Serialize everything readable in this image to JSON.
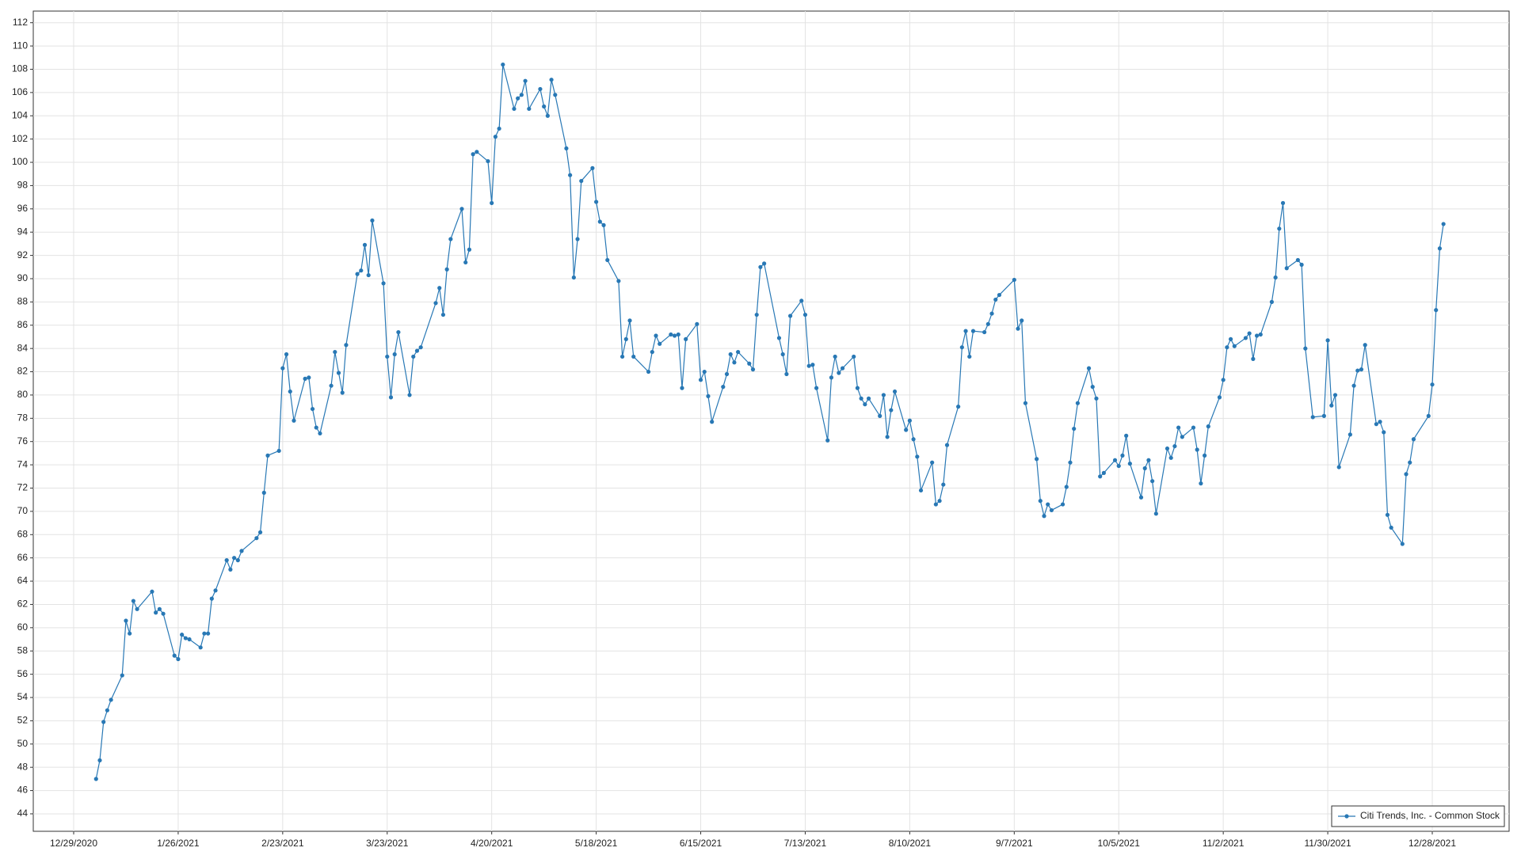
{
  "chart_data": {
    "type": "line",
    "x": [
      "1/4/2021",
      "1/5/2021",
      "1/6/2021",
      "1/7/2021",
      "1/8/2021",
      "1/11/2021",
      "1/12/2021",
      "1/13/2021",
      "1/14/2021",
      "1/15/2021",
      "1/19/2021",
      "1/20/2021",
      "1/21/2021",
      "1/22/2021",
      "1/25/2021",
      "1/26/2021",
      "1/27/2021",
      "1/28/2021",
      "1/29/2021",
      "2/1/2021",
      "2/2/2021",
      "2/3/2021",
      "2/4/2021",
      "2/5/2021",
      "2/8/2021",
      "2/9/2021",
      "2/10/2021",
      "2/11/2021",
      "2/12/2021",
      "2/16/2021",
      "2/17/2021",
      "2/18/2021",
      "2/19/2021",
      "2/22/2021",
      "2/23/2021",
      "2/24/2021",
      "2/25/2021",
      "2/26/2021",
      "3/1/2021",
      "3/2/2021",
      "3/3/2021",
      "3/4/2021",
      "3/5/2021",
      "3/8/2021",
      "3/9/2021",
      "3/10/2021",
      "3/11/2021",
      "3/12/2021",
      "3/15/2021",
      "3/16/2021",
      "3/17/2021",
      "3/18/2021",
      "3/19/2021",
      "3/22/2021",
      "3/23/2021",
      "3/24/2021",
      "3/25/2021",
      "3/26/2021",
      "3/29/2021",
      "3/30/2021",
      "3/31/2021",
      "4/1/2021",
      "4/5/2021",
      "4/6/2021",
      "4/7/2021",
      "4/8/2021",
      "4/9/2021",
      "4/12/2021",
      "4/13/2021",
      "4/14/2021",
      "4/15/2021",
      "4/16/2021",
      "4/19/2021",
      "4/20/2021",
      "4/21/2021",
      "4/22/2021",
      "4/23/2021",
      "4/26/2021",
      "4/27/2021",
      "4/28/2021",
      "4/29/2021",
      "4/30/2021",
      "5/3/2021",
      "5/4/2021",
      "5/5/2021",
      "5/6/2021",
      "5/7/2021",
      "5/10/2021",
      "5/11/2021",
      "5/12/2021",
      "5/13/2021",
      "5/14/2021",
      "5/17/2021",
      "5/18/2021",
      "5/19/2021",
      "5/20/2021",
      "5/21/2021",
      "5/24/2021",
      "5/25/2021",
      "5/26/2021",
      "5/27/2021",
      "5/28/2021",
      "6/1/2021",
      "6/2/2021",
      "6/3/2021",
      "6/4/2021",
      "6/7/2021",
      "6/8/2021",
      "6/9/2021",
      "6/10/2021",
      "6/11/2021",
      "6/14/2021",
      "6/15/2021",
      "6/16/2021",
      "6/17/2021",
      "6/18/2021",
      "6/21/2021",
      "6/22/2021",
      "6/23/2021",
      "6/24/2021",
      "6/25/2021",
      "6/28/2021",
      "6/29/2021",
      "6/30/2021",
      "7/1/2021",
      "7/2/2021",
      "7/6/2021",
      "7/7/2021",
      "7/8/2021",
      "7/9/2021",
      "7/12/2021",
      "7/13/2021",
      "7/14/2021",
      "7/15/2021",
      "7/16/2021",
      "7/19/2021",
      "7/20/2021",
      "7/21/2021",
      "7/22/2021",
      "7/23/2021",
      "7/26/2021",
      "7/27/2021",
      "7/28/2021",
      "7/29/2021",
      "7/30/2021",
      "8/2/2021",
      "8/3/2021",
      "8/4/2021",
      "8/5/2021",
      "8/6/2021",
      "8/9/2021",
      "8/10/2021",
      "8/11/2021",
      "8/12/2021",
      "8/13/2021",
      "8/16/2021",
      "8/17/2021",
      "8/18/2021",
      "8/19/2021",
      "8/20/2021",
      "8/23/2021",
      "8/24/2021",
      "8/25/2021",
      "8/26/2021",
      "8/27/2021",
      "8/30/2021",
      "8/31/2021",
      "9/1/2021",
      "9/2/2021",
      "9/3/2021",
      "9/7/2021",
      "9/8/2021",
      "9/9/2021",
      "9/10/2021",
      "9/13/2021",
      "9/14/2021",
      "9/15/2021",
      "9/16/2021",
      "9/17/2021",
      "9/20/2021",
      "9/21/2021",
      "9/22/2021",
      "9/23/2021",
      "9/24/2021",
      "9/27/2021",
      "9/28/2021",
      "9/29/2021",
      "9/30/2021",
      "10/1/2021",
      "10/4/2021",
      "10/5/2021",
      "10/6/2021",
      "10/7/2021",
      "10/8/2021",
      "10/11/2021",
      "10/12/2021",
      "10/13/2021",
      "10/14/2021",
      "10/15/2021",
      "10/18/2021",
      "10/19/2021",
      "10/20/2021",
      "10/21/2021",
      "10/22/2021",
      "10/25/2021",
      "10/26/2021",
      "10/27/2021",
      "10/28/2021",
      "10/29/2021",
      "11/1/2021",
      "11/2/2021",
      "11/3/2021",
      "11/4/2021",
      "11/5/2021",
      "11/8/2021",
      "11/9/2021",
      "11/10/2021",
      "11/11/2021",
      "11/12/2021",
      "11/15/2021",
      "11/16/2021",
      "11/17/2021",
      "11/18/2021",
      "11/19/2021",
      "11/22/2021",
      "11/23/2021",
      "11/24/2021",
      "11/26/2021",
      "11/29/2021",
      "11/30/2021",
      "12/1/2021",
      "12/2/2021",
      "12/3/2021",
      "12/6/2021",
      "12/7/2021",
      "12/8/2021",
      "12/9/2021",
      "12/10/2021",
      "12/13/2021",
      "12/14/2021",
      "12/15/2021",
      "12/16/2021",
      "12/17/2021",
      "12/20/2021",
      "12/21/2021",
      "12/22/2021",
      "12/23/2021",
      "12/27/2021",
      "12/28/2021",
      "12/29/2021",
      "12/30/2021",
      "12/31/2021"
    ],
    "series": [
      {
        "name": "Citi Trends, Inc. - Common Stock",
        "color": "#2878b5",
        "values": [
          47.0,
          48.6,
          51.9,
          52.9,
          53.8,
          55.9,
          60.6,
          59.5,
          62.3,
          61.6,
          63.1,
          61.3,
          61.6,
          61.2,
          57.6,
          57.3,
          59.4,
          59.1,
          59.0,
          58.3,
          59.5,
          59.5,
          62.5,
          63.2,
          65.8,
          65.0,
          66.0,
          65.8,
          66.6,
          67.7,
          68.2,
          71.6,
          74.8,
          75.2,
          82.3,
          83.5,
          80.3,
          77.8,
          81.4,
          81.5,
          78.8,
          77.2,
          76.7,
          80.8,
          83.7,
          81.9,
          80.2,
          84.3,
          90.4,
          90.7,
          92.9,
          90.3,
          95.0,
          89.6,
          83.3,
          79.8,
          83.5,
          85.4,
          80.0,
          83.3,
          83.8,
          84.1,
          87.9,
          89.2,
          86.9,
          90.8,
          93.4,
          96.0,
          91.4,
          92.5,
          100.7,
          100.9,
          100.1,
          96.5,
          102.2,
          102.9,
          108.4,
          104.6,
          105.5,
          105.8,
          107.0,
          104.6,
          106.3,
          104.8,
          104.0,
          107.1,
          105.8,
          101.2,
          98.9,
          90.1,
          93.4,
          98.4,
          99.5,
          96.6,
          94.9,
          94.6,
          91.6,
          89.8,
          83.3,
          84.8,
          86.4,
          83.3,
          82.0,
          83.7,
          85.1,
          84.4,
          85.2,
          85.1,
          85.2,
          80.6,
          84.8,
          86.1,
          81.3,
          82.0,
          79.9,
          77.7,
          80.7,
          81.8,
          83.5,
          82.8,
          83.7,
          82.7,
          82.2,
          86.9,
          91.0,
          91.3,
          84.9,
          83.5,
          81.8,
          86.8,
          88.1,
          86.9,
          82.5,
          82.6,
          80.6,
          76.1,
          81.5,
          83.3,
          81.9,
          82.3,
          83.3,
          80.6,
          79.7,
          79.2,
          79.7,
          78.2,
          80.0,
          76.4,
          78.7,
          80.3,
          77.0,
          77.8,
          76.2,
          74.7,
          71.8,
          74.2,
          70.6,
          70.9,
          72.3,
          75.7,
          79.0,
          84.1,
          85.5,
          83.3,
          85.5,
          85.4,
          86.1,
          87.0,
          88.2,
          88.6,
          89.9,
          85.7,
          86.4,
          79.3,
          74.5,
          70.9,
          69.6,
          70.6,
          70.1,
          70.6,
          72.1,
          74.2,
          77.1,
          79.3,
          82.3,
          80.7,
          79.7,
          73.0,
          73.3,
          74.4,
          73.9,
          74.8,
          76.5,
          74.1,
          71.2,
          73.7,
          74.4,
          72.6,
          69.8,
          75.4,
          74.6,
          75.6,
          77.2,
          76.4,
          77.2,
          75.3,
          72.4,
          74.8,
          77.3,
          79.8,
          81.3,
          84.1,
          84.8,
          84.2,
          84.9,
          85.3,
          83.1,
          85.1,
          85.2,
          88.0,
          90.1,
          94.3,
          96.5,
          90.9,
          91.6,
          91.2,
          84.0,
          78.1,
          78.2,
          84.7,
          79.1,
          80.0,
          73.8,
          76.6,
          80.8,
          82.1,
          82.2,
          84.3,
          77.5,
          77.7,
          76.8,
          69.7,
          68.6,
          67.2,
          73.2,
          74.2,
          76.2,
          78.2,
          80.9,
          87.3,
          92.6,
          94.7
        ]
      }
    ],
    "xticks": [
      "12/29/2020",
      "1/26/2021",
      "2/23/2021",
      "3/23/2021",
      "4/20/2021",
      "5/18/2021",
      "6/15/2021",
      "7/13/2021",
      "8/10/2021",
      "9/7/2021",
      "10/5/2021",
      "11/2/2021",
      "11/30/2021",
      "12/28/2021"
    ],
    "ylim": [
      42.5,
      113
    ],
    "yticks": [
      44,
      46,
      48,
      50,
      52,
      54,
      56,
      58,
      60,
      62,
      64,
      66,
      68,
      70,
      72,
      74,
      76,
      78,
      80,
      82,
      84,
      86,
      88,
      90,
      92,
      94,
      96,
      98,
      100,
      102,
      104,
      106,
      108,
      110,
      112
    ],
    "grid": true,
    "legend": "bottom-right"
  }
}
